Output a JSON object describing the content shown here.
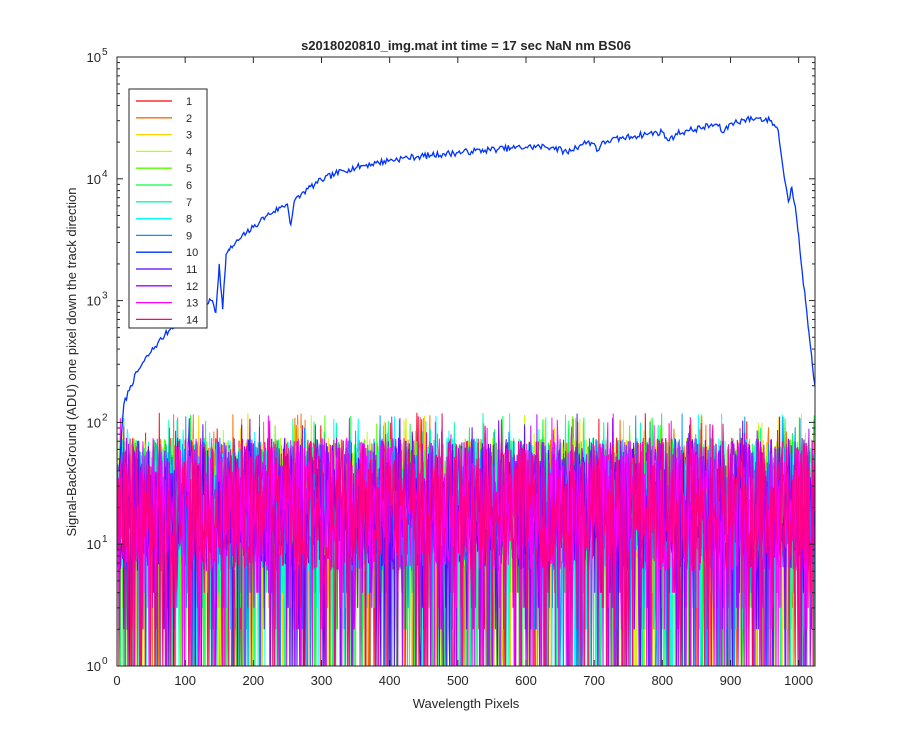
{
  "chart_data": {
    "type": "line",
    "title": "s2018020810_img.mat int time = 17 sec  NaN nm BS06",
    "xlabel": "Wavelength Pixels",
    "ylabel": "Signal-BackGround (ADU) one pixel down the track direction",
    "xlim": [
      0,
      1024
    ],
    "ylim": [
      1,
      100000
    ],
    "yscale": "log",
    "x_ticks": [
      0,
      100,
      200,
      300,
      400,
      500,
      600,
      700,
      800,
      900,
      1000
    ],
    "y_ticks": [
      {
        "value": 1,
        "base": "10",
        "exp": "0"
      },
      {
        "value": 10,
        "base": "10",
        "exp": "1"
      },
      {
        "value": 100,
        "base": "10",
        "exp": "2"
      },
      {
        "value": 1000,
        "base": "10",
        "exp": "3"
      },
      {
        "value": 10000,
        "base": "10",
        "exp": "4"
      },
      {
        "value": 100000,
        "base": "10",
        "exp": "5"
      }
    ],
    "grid": false,
    "box": true,
    "legend_position": "top-left",
    "series": [
      {
        "name": "1",
        "color": "#ff0000",
        "kind": "noise",
        "seed": 11
      },
      {
        "name": "2",
        "color": "#ff6a00",
        "kind": "noise",
        "seed": 23
      },
      {
        "name": "3",
        "color": "#ffd400",
        "kind": "noise",
        "seed": 37
      },
      {
        "name": "4",
        "color": "#c0ff00",
        "kind": "noise",
        "seed": 41
      },
      {
        "name": "5",
        "color": "#55ff00",
        "kind": "noise",
        "seed": 53
      },
      {
        "name": "6",
        "color": "#00ff40",
        "kind": "noise",
        "seed": 67
      },
      {
        "name": "7",
        "color": "#00ffaa",
        "kind": "noise",
        "seed": 71
      },
      {
        "name": "8",
        "color": "#00ffff",
        "kind": "noise",
        "seed": 83
      },
      {
        "name": "9",
        "color": "#0095ff",
        "kind": "noise",
        "seed": 97
      },
      {
        "name": "10",
        "color": "#0033ff",
        "kind": "spectrum",
        "x": [
          3,
          10,
          20,
          30,
          40,
          50,
          60,
          70,
          80,
          90,
          100,
          110,
          120,
          130,
          140,
          145,
          150,
          155,
          160,
          165,
          170,
          180,
          190,
          200,
          210,
          220,
          230,
          240,
          250,
          255,
          260,
          270,
          280,
          290,
          300,
          320,
          340,
          360,
          380,
          400,
          420,
          440,
          460,
          480,
          500,
          520,
          540,
          560,
          580,
          600,
          620,
          640,
          660,
          680,
          690,
          700,
          705,
          710,
          720,
          740,
          760,
          780,
          800,
          810,
          820,
          840,
          860,
          880,
          890,
          900,
          920,
          940,
          960,
          970,
          975,
          980,
          985,
          990,
          995,
          1000,
          1005,
          1010,
          1015,
          1020,
          1024
        ],
        "values": [
          40,
          140,
          200,
          260,
          320,
          380,
          450,
          520,
          600,
          680,
          750,
          820,
          900,
          960,
          1000,
          800,
          2000,
          850,
          2400,
          2600,
          2800,
          3200,
          3600,
          4000,
          4500,
          5000,
          5400,
          5800,
          6200,
          4200,
          6500,
          7400,
          8300,
          9000,
          9800,
          11000,
          12000,
          12800,
          13500,
          14200,
          14800,
          15200,
          15600,
          16000,
          16400,
          16800,
          17200,
          17600,
          17900,
          18200,
          18400,
          18200,
          16500,
          19000,
          20000,
          19500,
          17000,
          19000,
          20500,
          21500,
          22500,
          23500,
          24200,
          20500,
          23500,
          25000,
          26500,
          28000,
          24000,
          28500,
          30500,
          31500,
          30000,
          25000,
          15000,
          9500,
          6500,
          8500,
          6000,
          3500,
          1800,
          1000,
          550,
          300,
          200
        ]
      },
      {
        "name": "11",
        "color": "#5500ff",
        "kind": "noise",
        "seed": 101
      },
      {
        "name": "12",
        "color": "#aa00ff",
        "kind": "noise",
        "seed": 113
      },
      {
        "name": "13",
        "color": "#ff00ff",
        "kind": "noise",
        "seed": 127
      },
      {
        "name": "14",
        "color": "#ff0080",
        "kind": "noise",
        "seed": 131
      }
    ]
  }
}
